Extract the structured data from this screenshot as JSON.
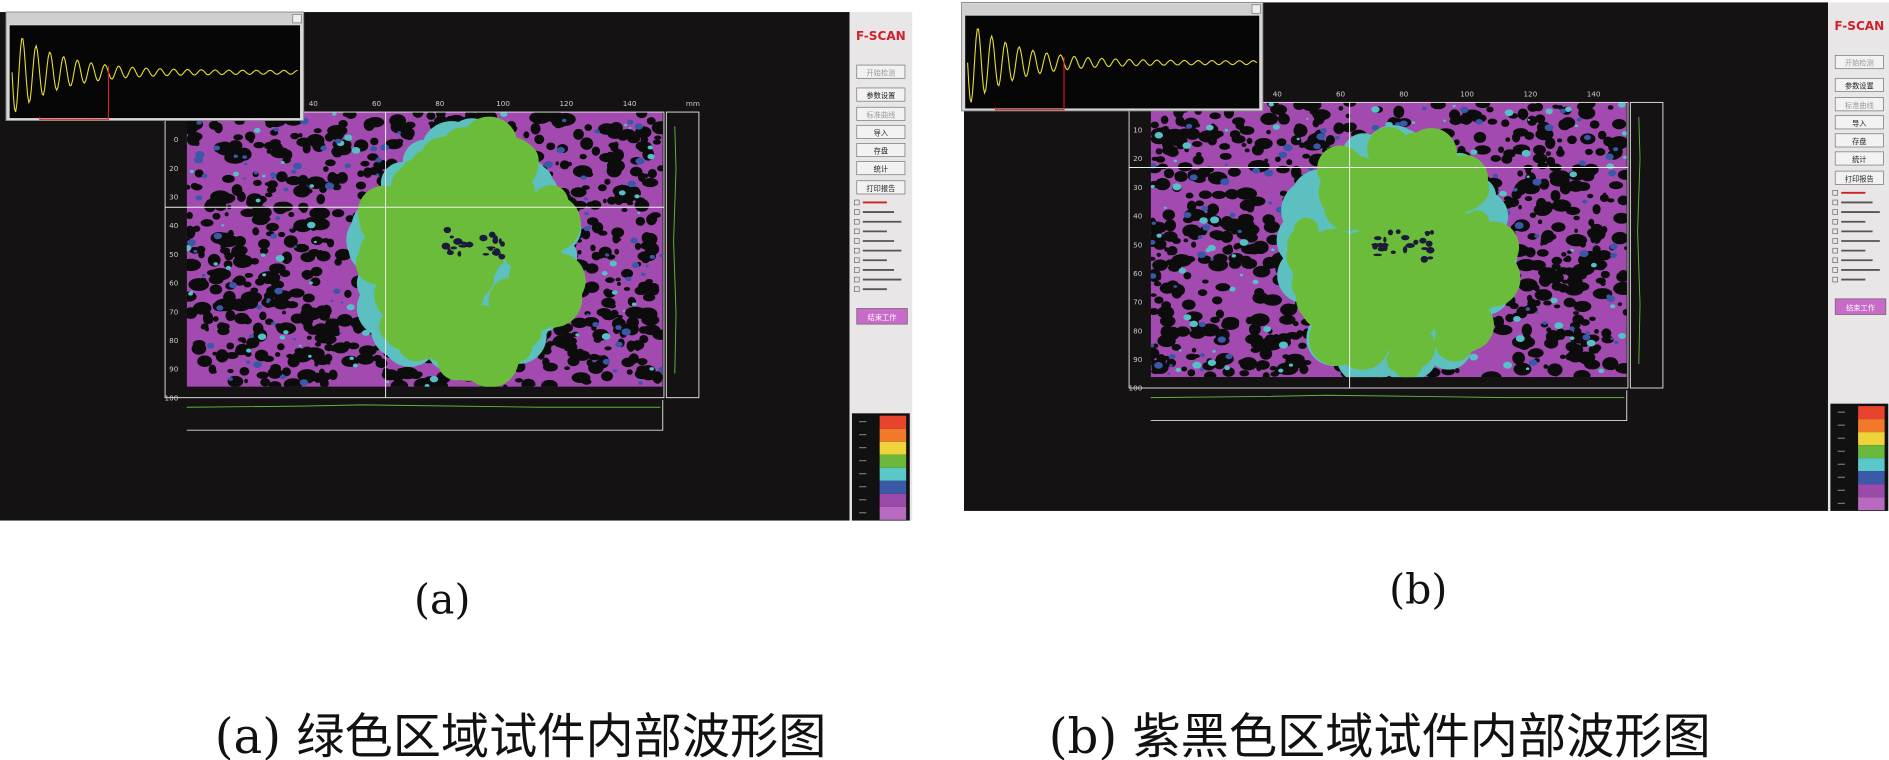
{
  "panels": [
    {
      "label": "(a)",
      "caption": "(a) 绿色区域试件内部波形图",
      "app_title": "F-SCAN",
      "buttons": [
        "开始检测",
        "参数设置",
        "标准曲线",
        "导入",
        "存盘",
        "统计",
        "打印报告"
      ],
      "stop_button": "结束工作",
      "top_ticks": [
        "40",
        "60",
        "80",
        "100",
        "120",
        "140",
        "mm"
      ],
      "left_ticks": [
        "0",
        "20",
        "30",
        "40",
        "50",
        "60",
        "70",
        "80",
        "90",
        "100"
      ]
    },
    {
      "label": "(b)",
      "caption": "(b) 紫黑色区域试件内部波形图",
      "app_title": "F-SCAN",
      "buttons": [
        "开始检测",
        "参数设置",
        "标准曲线",
        "导入",
        "存盘",
        "统计",
        "打印报告"
      ],
      "stop_button": "结束工作",
      "top_ticks": [
        "40",
        "60",
        "80",
        "100",
        "120",
        "140"
      ],
      "left_ticks": [
        "10",
        "20",
        "30",
        "40",
        "50",
        "60",
        "70",
        "80",
        "90",
        "100"
      ]
    }
  ]
}
